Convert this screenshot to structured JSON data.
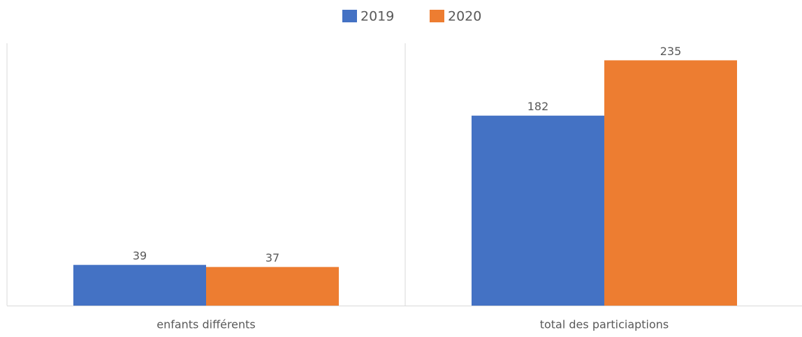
{
  "chart_data": {
    "type": "bar",
    "categories": [
      "enfants différents",
      "total des particiaptions"
    ],
    "series": [
      {
        "name": "2019",
        "color": "#4472c4",
        "values": [
          39,
          182
        ]
      },
      {
        "name": "2020",
        "color": "#ed7d31",
        "values": [
          37,
          235
        ]
      }
    ],
    "ylim": [
      0,
      250
    ],
    "legend": "top"
  }
}
